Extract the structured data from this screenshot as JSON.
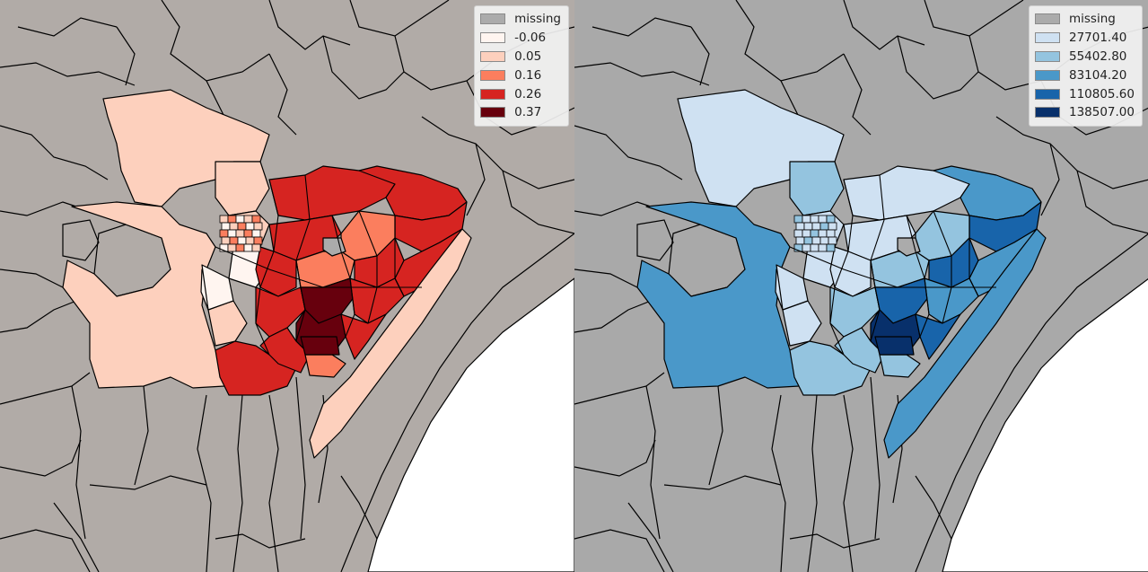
{
  "maps": [
    {
      "id": "left",
      "palette": "Reds",
      "background_color": "#b1aba7",
      "legend": {
        "placement": "top-right",
        "entries": [
          {
            "label": "missing",
            "color": "#ababab"
          },
          {
            "label": "-0.06",
            "color": "#fff5f0"
          },
          {
            "label": "0.05",
            "color": "#fdd0bd"
          },
          {
            "label": "0.16",
            "color": "#fb7e5e"
          },
          {
            "label": "0.26",
            "color": "#d62421"
          },
          {
            "label": "0.37",
            "color": "#67000d"
          }
        ]
      }
    },
    {
      "id": "right",
      "palette": "Blues",
      "background_color": "#a9a9a9",
      "legend": {
        "placement": "top-right",
        "entries": [
          {
            "label": "missing",
            "color": "#ababab"
          },
          {
            "label": "27701.40",
            "color": "#cfe1f2"
          },
          {
            "label": "55402.80",
            "color": "#94c4df"
          },
          {
            "label": "83104.20",
            "color": "#4a98c9"
          },
          {
            "label": "110805.60",
            "color": "#1864aa"
          },
          {
            "label": "138507.00",
            "color": "#08306b"
          }
        ]
      }
    }
  ]
}
